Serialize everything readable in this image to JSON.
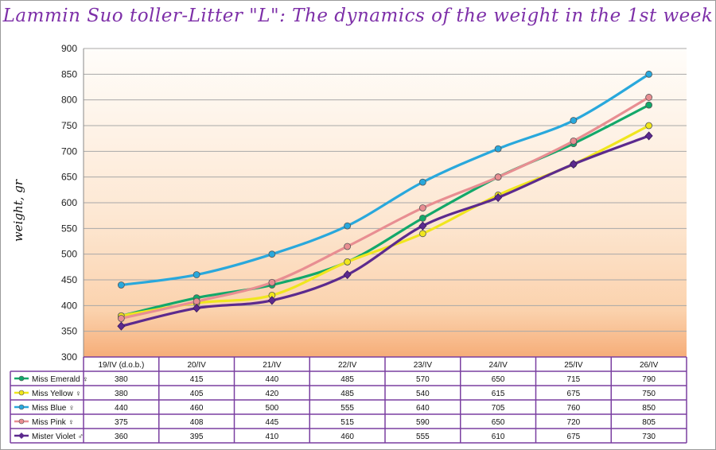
{
  "chart_data": {
    "type": "line",
    "title": "Lammin Suo toller-Litter \"L\": The dynamics of the weight in the 1st week",
    "ylabel": "weight, gr",
    "xlabel": "",
    "ylim": [
      300,
      900
    ],
    "yticks": [
      300,
      350,
      400,
      450,
      500,
      550,
      600,
      650,
      700,
      750,
      800,
      850,
      900
    ],
    "grid": true,
    "legend": "data-table-below",
    "categories": [
      "19/IV (d.o.b.)",
      "20/IV",
      "21/IV",
      "22/IV",
      "23/IV",
      "24/IV",
      "25/IV",
      "26/IV"
    ],
    "series": [
      {
        "name": "Miss Emerald ♀",
        "color": "#13a86a",
        "marker": "circle",
        "values": [
          380,
          415,
          440,
          485,
          570,
          650,
          715,
          790
        ]
      },
      {
        "name": "Miss Yellow ♀",
        "color": "#f0e61e",
        "marker": "circle",
        "values": [
          380,
          405,
          420,
          485,
          540,
          615,
          675,
          750
        ]
      },
      {
        "name": "Miss Blue ♀",
        "color": "#29a8dc",
        "marker": "circle",
        "values": [
          440,
          460,
          500,
          555,
          640,
          705,
          760,
          850
        ]
      },
      {
        "name": "Miss Pink ♀",
        "color": "#e88e92",
        "marker": "circle",
        "values": [
          375,
          408,
          445,
          515,
          590,
          650,
          720,
          805
        ]
      },
      {
        "name": "Mister Violet ♂",
        "color": "#5c2a8e",
        "marker": "diamond",
        "values": [
          360,
          395,
          410,
          460,
          555,
          610,
          675,
          730
        ]
      }
    ]
  }
}
